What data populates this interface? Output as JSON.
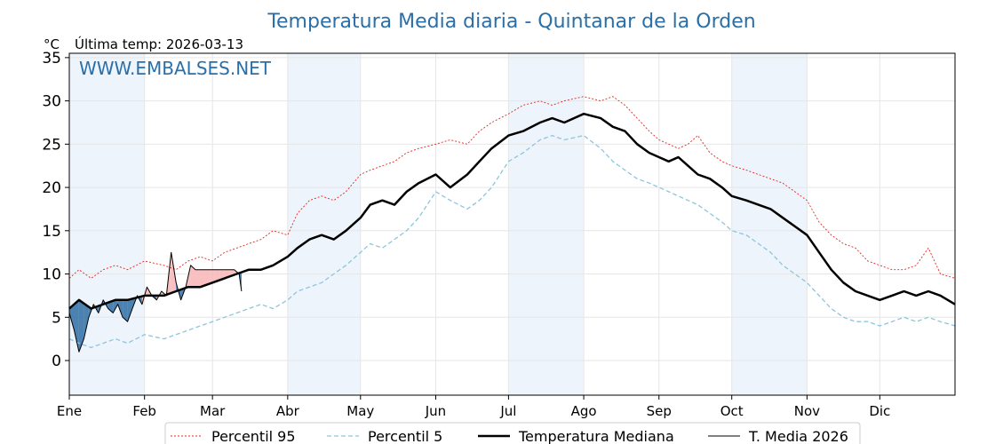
{
  "chart_data": {
    "type": "line",
    "title": "Temperatura Media diaria - Quintanar de la Orden",
    "unit_label": "°C",
    "last_temp_label": "Última temp: 2026-03-13",
    "watermark": "WWW.EMBALSES.NET",
    "ylim": [
      -4,
      35.5
    ],
    "yticks": [
      0,
      5,
      10,
      15,
      20,
      25,
      30,
      35
    ],
    "xlim": [
      1,
      366
    ],
    "months": [
      {
        "label": "Ene",
        "day": 1
      },
      {
        "label": "Feb",
        "day": 32
      },
      {
        "label": "Mar",
        "day": 60
      },
      {
        "label": "Abr",
        "day": 91
      },
      {
        "label": "May",
        "day": 121
      },
      {
        "label": "Jun",
        "day": 152
      },
      {
        "label": "Jul",
        "day": 182
      },
      {
        "label": "Ago",
        "day": 213
      },
      {
        "label": "Sep",
        "day": 244
      },
      {
        "label": "Oct",
        "day": 274
      },
      {
        "label": "Nov",
        "day": 305
      },
      {
        "label": "Dic",
        "day": 335
      }
    ],
    "shaded_month_pairs": [
      [
        1,
        32
      ],
      [
        91,
        121
      ],
      [
        182,
        213
      ],
      [
        274,
        305
      ]
    ],
    "colors": {
      "title": "#2a6fa8",
      "p95": "#e8241c",
      "p5": "#8ec5dc",
      "median": "#000000",
      "current": "#000000",
      "above_fill": "#f7b9b9",
      "below_fill": "#2e6da4",
      "band": "#eef4fb"
    },
    "legend": [
      {
        "name": "Percentil 95",
        "key": "p95"
      },
      {
        "name": "Percentil 5",
        "key": "p5"
      },
      {
        "name": "Temperatura Mediana",
        "key": "median"
      },
      {
        "name": "T. Media 2026",
        "key": "current"
      }
    ],
    "series": [
      {
        "name": "Percentil 95",
        "key": "p95",
        "x": [
          1,
          5,
          10,
          15,
          20,
          25,
          32,
          40,
          45,
          50,
          55,
          60,
          65,
          70,
          75,
          80,
          85,
          91,
          95,
          100,
          105,
          110,
          115,
          121,
          125,
          130,
          135,
          140,
          145,
          152,
          158,
          165,
          170,
          175,
          182,
          188,
          195,
          200,
          205,
          213,
          220,
          225,
          230,
          235,
          240,
          244,
          248,
          252,
          256,
          260,
          265,
          270,
          274,
          280,
          285,
          290,
          295,
          300,
          305,
          310,
          315,
          320,
          325,
          330,
          335,
          340,
          345,
          350,
          355,
          360,
          366
        ],
        "values": [
          9.5,
          10.5,
          9.5,
          10.5,
          11.0,
          10.5,
          11.5,
          11.0,
          10.5,
          11.5,
          12.0,
          11.5,
          12.5,
          13.0,
          13.5,
          14.0,
          15.0,
          14.5,
          17.0,
          18.5,
          19.0,
          18.5,
          19.5,
          21.5,
          22.0,
          22.5,
          23.0,
          24.0,
          24.5,
          25.0,
          25.5,
          25.0,
          26.5,
          27.5,
          28.5,
          29.5,
          30.0,
          29.5,
          30.0,
          30.5,
          30.0,
          30.5,
          29.5,
          28.0,
          26.5,
          25.5,
          25.0,
          24.5,
          25.0,
          26.0,
          24.0,
          23.0,
          22.5,
          22.0,
          21.5,
          21.0,
          20.5,
          19.5,
          18.5,
          16.0,
          14.5,
          13.5,
          13.0,
          11.5,
          11.0,
          10.5,
          10.5,
          11.0,
          13.0,
          10.0,
          9.5
        ]
      },
      {
        "name": "Percentil 5",
        "key": "p5",
        "x": [
          1,
          5,
          10,
          15,
          20,
          25,
          32,
          40,
          45,
          50,
          55,
          60,
          65,
          70,
          75,
          80,
          85,
          91,
          95,
          100,
          105,
          110,
          115,
          121,
          125,
          130,
          135,
          140,
          145,
          152,
          158,
          165,
          170,
          175,
          182,
          188,
          195,
          200,
          205,
          213,
          220,
          225,
          230,
          235,
          240,
          244,
          248,
          252,
          256,
          260,
          265,
          270,
          274,
          280,
          285,
          290,
          295,
          300,
          305,
          310,
          315,
          320,
          325,
          330,
          335,
          340,
          345,
          350,
          355,
          360,
          366
        ],
        "values": [
          2.5,
          2.0,
          1.5,
          2.0,
          2.5,
          2.0,
          3.0,
          2.5,
          3.0,
          3.5,
          4.0,
          4.5,
          5.0,
          5.5,
          6.0,
          6.5,
          6.0,
          7.0,
          8.0,
          8.5,
          9.0,
          10.0,
          11.0,
          12.5,
          13.5,
          13.0,
          14.0,
          15.0,
          16.5,
          19.5,
          18.5,
          17.5,
          18.5,
          20.0,
          23.0,
          24.0,
          25.5,
          26.0,
          25.5,
          26.0,
          24.5,
          23.0,
          22.0,
          21.0,
          20.5,
          20.0,
          19.5,
          19.0,
          18.5,
          18.0,
          17.0,
          16.0,
          15.0,
          14.5,
          13.5,
          12.5,
          11.0,
          10.0,
          9.0,
          7.5,
          6.0,
          5.0,
          4.5,
          4.5,
          4.0,
          4.5,
          5.0,
          4.5,
          5.0,
          4.5,
          4.0
        ]
      },
      {
        "name": "Temperatura Mediana",
        "key": "median",
        "x": [
          1,
          5,
          10,
          15,
          20,
          25,
          32,
          40,
          45,
          50,
          55,
          60,
          65,
          70,
          75,
          80,
          85,
          91,
          95,
          100,
          105,
          110,
          115,
          121,
          125,
          130,
          135,
          140,
          145,
          152,
          158,
          165,
          170,
          175,
          182,
          188,
          195,
          200,
          205,
          213,
          220,
          225,
          230,
          235,
          240,
          244,
          248,
          252,
          256,
          260,
          265,
          270,
          274,
          280,
          285,
          290,
          295,
          300,
          305,
          310,
          315,
          320,
          325,
          330,
          335,
          340,
          345,
          350,
          355,
          360,
          366
        ],
        "values": [
          6.0,
          7.0,
          6.0,
          6.5,
          7.0,
          7.0,
          7.5,
          7.5,
          8.0,
          8.5,
          8.5,
          9.0,
          9.5,
          10.0,
          10.5,
          10.5,
          11.0,
          12.0,
          13.0,
          14.0,
          14.5,
          14.0,
          15.0,
          16.5,
          18.0,
          18.5,
          18.0,
          19.5,
          20.5,
          21.5,
          20.0,
          21.5,
          23.0,
          24.5,
          26.0,
          26.5,
          27.5,
          28.0,
          27.5,
          28.5,
          28.0,
          27.0,
          26.5,
          25.0,
          24.0,
          23.5,
          23.0,
          23.5,
          22.5,
          21.5,
          21.0,
          20.0,
          19.0,
          18.5,
          18.0,
          17.5,
          16.5,
          15.5,
          14.5,
          12.5,
          10.5,
          9.0,
          8.0,
          7.5,
          7.0,
          7.5,
          8.0,
          7.5,
          8.0,
          7.5,
          6.5
        ]
      },
      {
        "name": "T. Media 2026",
        "key": "current",
        "x": [
          1,
          3,
          5,
          7,
          9,
          11,
          13,
          15,
          17,
          19,
          21,
          23,
          25,
          27,
          29,
          31,
          33,
          35,
          37,
          39,
          41,
          43,
          45,
          47,
          49,
          51,
          53,
          55,
          57,
          59,
          61,
          63,
          65,
          67,
          69,
          71,
          72
        ],
        "values": [
          5.5,
          3.5,
          1.0,
          2.5,
          5.0,
          6.5,
          5.5,
          7.0,
          6.0,
          5.5,
          6.5,
          5.0,
          4.5,
          6.0,
          7.5,
          6.5,
          8.5,
          7.5,
          7.0,
          8.0,
          7.5,
          12.5,
          9.0,
          7.0,
          8.5,
          11.0,
          10.5,
          10.5,
          10.5,
          10.5,
          10.5,
          10.5,
          10.5,
          10.5,
          10.5,
          10.0,
          8.0
        ]
      }
    ]
  }
}
